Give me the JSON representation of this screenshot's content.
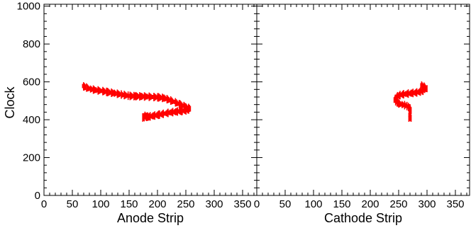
{
  "chart_data": [
    {
      "type": "scatter",
      "xlabel": "Anode Strip",
      "ylabel": "Clock",
      "xlim": [
        0,
        375
      ],
      "ylim": [
        0,
        1010
      ],
      "xticks": [
        0,
        50,
        100,
        150,
        200,
        250,
        300,
        350
      ],
      "yticks": [
        0,
        200,
        400,
        600,
        800,
        1000
      ],
      "grid": false,
      "series": [
        {
          "color": "#ff0000",
          "points": [
            [
              68,
              578
            ],
            [
              75,
              570
            ],
            [
              82,
              562
            ],
            [
              92,
              556
            ],
            [
              102,
              552
            ],
            [
              112,
              546
            ],
            [
              124,
              540
            ],
            [
              138,
              532
            ],
            [
              150,
              526
            ],
            [
              162,
              524
            ],
            [
              172,
              523
            ],
            [
              182,
              522
            ],
            [
              192,
              520
            ],
            [
              202,
              518
            ],
            [
              212,
              514
            ],
            [
              220,
              505
            ],
            [
              230,
              494
            ],
            [
              240,
              480
            ],
            [
              250,
              468
            ],
            [
              258,
              458
            ],
            [
              252,
              450
            ],
            [
              242,
              446
            ],
            [
              232,
              442
            ],
            [
              222,
              438
            ],
            [
              212,
              432
            ],
            [
              202,
              426
            ],
            [
              192,
              420
            ],
            [
              184,
              416
            ],
            [
              178,
              414
            ],
            [
              174,
              412
            ],
            [
              178,
              424
            ],
            [
              186,
              412
            ]
          ]
        }
      ]
    },
    {
      "type": "scatter",
      "xlabel": "Cathode Strip",
      "ylabel": "",
      "xlim": [
        0,
        375
      ],
      "ylim": [
        0,
        1010
      ],
      "xticks": [
        0,
        50,
        100,
        150,
        200,
        250,
        300,
        350
      ],
      "yticks": [
        0,
        200,
        400,
        600,
        800,
        1000
      ],
      "grid": false,
      "series": [
        {
          "color": "#ff0000",
          "points": [
            [
              289,
              582
            ],
            [
              295,
              574
            ],
            [
              300,
              564
            ],
            [
              296,
              556
            ],
            [
              290,
              550
            ],
            [
              282,
              544
            ],
            [
              272,
              540
            ],
            [
              262,
              536
            ],
            [
              254,
              532
            ],
            [
              248,
              524
            ],
            [
              244,
              514
            ],
            [
              242,
              504
            ],
            [
              246,
              494
            ],
            [
              250,
              486
            ],
            [
              256,
              480
            ],
            [
              262,
              476
            ],
            [
              266,
              470
            ],
            [
              270,
              460
            ],
            [
              272,
              448
            ],
            [
              270,
              436
            ],
            [
              268,
              426
            ],
            [
              270,
              416
            ],
            [
              272,
              408
            ],
            [
              268,
              404
            ]
          ]
        }
      ]
    }
  ]
}
